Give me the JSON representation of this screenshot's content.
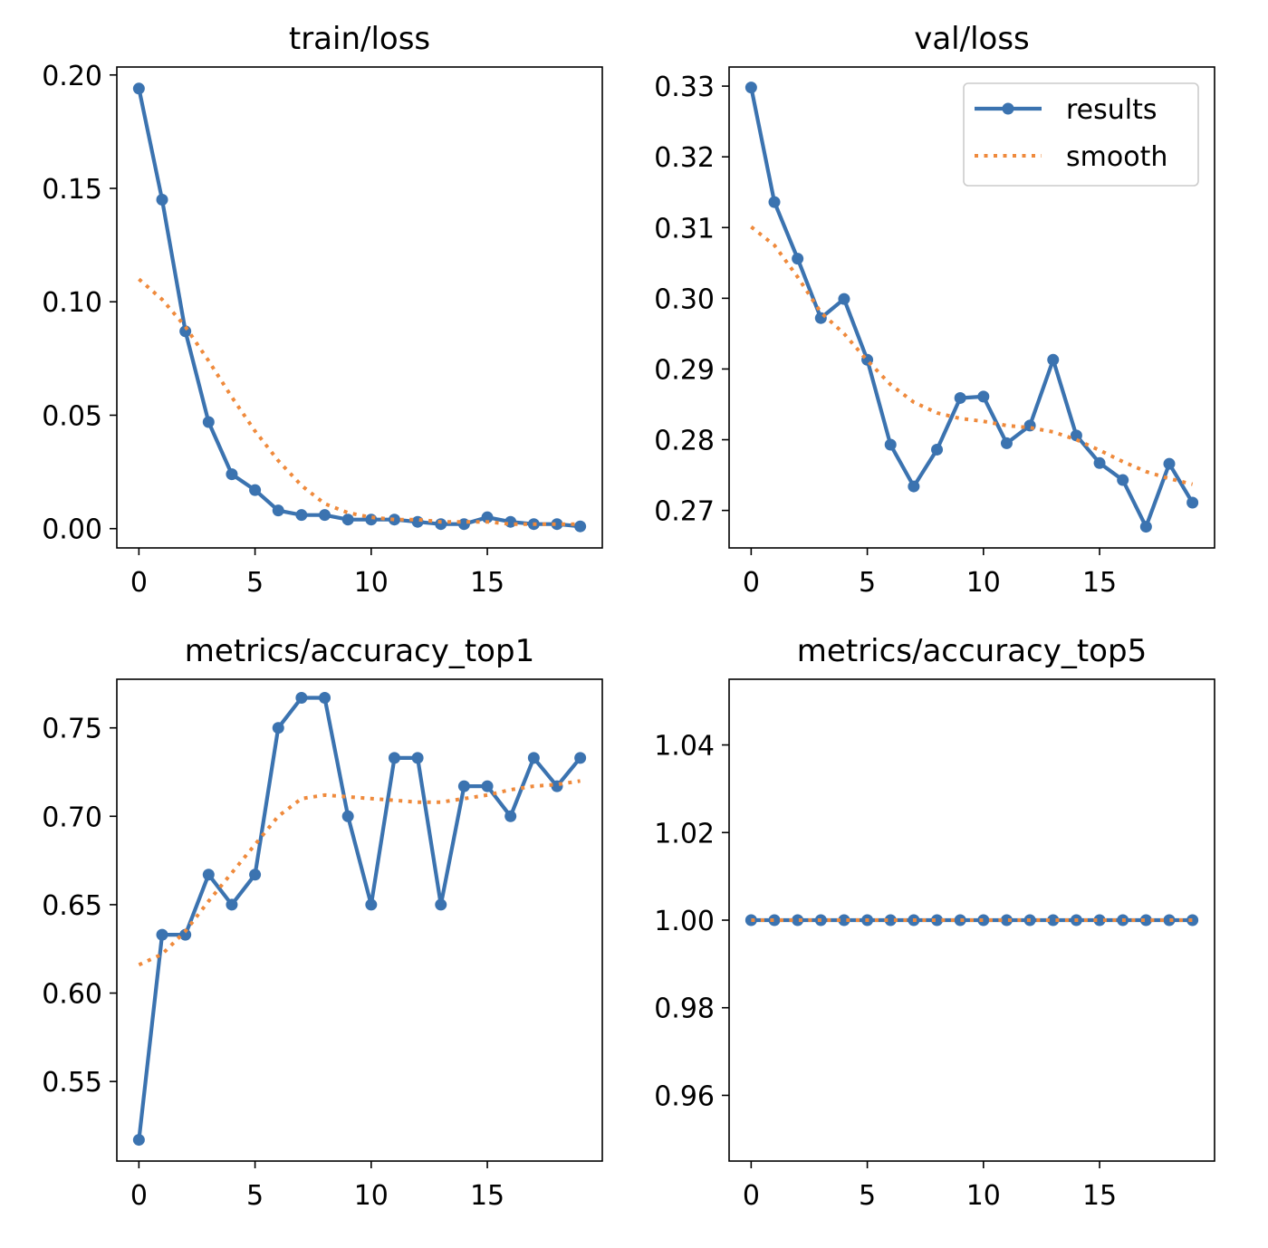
{
  "colors": {
    "results": "#3b73b0",
    "smooth": "#ef8a3c",
    "frame": "#000000",
    "background": "#ffffff"
  },
  "legend": {
    "placement": "upper-right",
    "panel": 1,
    "results_label": "results",
    "smooth_label": "smooth"
  },
  "chart_data": [
    {
      "type": "line",
      "title": "train/loss",
      "xlabel": "",
      "ylabel": "",
      "xlim": [
        -0.95,
        19.95
      ],
      "ylim": [
        -0.0085,
        0.2035
      ],
      "xticks": [
        0,
        5,
        10,
        15
      ],
      "xtick_labels": [
        "0",
        "5",
        "10",
        "15"
      ],
      "yticks": [
        0.0,
        0.05,
        0.1,
        0.15,
        0.2
      ],
      "ytick_labels": [
        "0.00",
        "0.05",
        "0.10",
        "0.15",
        "0.20"
      ],
      "grid": false,
      "x": [
        0,
        1,
        2,
        3,
        4,
        5,
        6,
        7,
        8,
        9,
        10,
        11,
        12,
        13,
        14,
        15,
        16,
        17,
        18,
        19
      ],
      "series": [
        {
          "name": "results",
          "style": "solid-marker",
          "values": [
            0.194,
            0.145,
            0.087,
            0.047,
            0.024,
            0.017,
            0.008,
            0.006,
            0.006,
            0.004,
            0.004,
            0.004,
            0.003,
            0.002,
            0.002,
            0.005,
            0.003,
            0.002,
            0.002,
            0.001
          ]
        },
        {
          "name": "smooth",
          "style": "dotted",
          "values": [
            0.11,
            0.101,
            0.089,
            0.074,
            0.058,
            0.043,
            0.03,
            0.019,
            0.011,
            0.007,
            0.005,
            0.004,
            0.004,
            0.003,
            0.003,
            0.003,
            0.002,
            0.002,
            0.002,
            0.002
          ]
        }
      ]
    },
    {
      "type": "line",
      "title": "val/loss",
      "xlabel": "",
      "ylabel": "",
      "xlim": [
        -0.95,
        19.95
      ],
      "ylim": [
        0.2647,
        0.3327
      ],
      "xticks": [
        0,
        5,
        10,
        15
      ],
      "xtick_labels": [
        "0",
        "5",
        "10",
        "15"
      ],
      "yticks": [
        0.27,
        0.28,
        0.29,
        0.3,
        0.31,
        0.32,
        0.33
      ],
      "ytick_labels": [
        "0.27",
        "0.28",
        "0.29",
        "0.30",
        "0.31",
        "0.32",
        "0.33"
      ],
      "grid": false,
      "x": [
        0,
        1,
        2,
        3,
        4,
        5,
        6,
        7,
        8,
        9,
        10,
        11,
        12,
        13,
        14,
        15,
        16,
        17,
        18,
        19
      ],
      "series": [
        {
          "name": "results",
          "style": "solid-marker",
          "values": [
            0.3298,
            0.3136,
            0.3056,
            0.2972,
            0.2999,
            0.2913,
            0.2793,
            0.2734,
            0.2786,
            0.2859,
            0.2861,
            0.2795,
            0.282,
            0.2913,
            0.2806,
            0.2767,
            0.2743,
            0.2677,
            0.2766,
            0.2711
          ]
        },
        {
          "name": "smooth",
          "style": "dotted",
          "values": [
            0.3101,
            0.3075,
            0.303,
            0.298,
            0.295,
            0.2912,
            0.2878,
            0.2853,
            0.2838,
            0.283,
            0.2826,
            0.282,
            0.2817,
            0.2811,
            0.28,
            0.2785,
            0.2769,
            0.2755,
            0.2745,
            0.2737
          ]
        }
      ]
    },
    {
      "type": "line",
      "title": "metrics/accuracy_top1",
      "xlabel": "",
      "ylabel": "",
      "xlim": [
        -0.95,
        19.95
      ],
      "ylim": [
        0.505,
        0.7775
      ],
      "xticks": [
        0,
        5,
        10,
        15
      ],
      "xtick_labels": [
        "0",
        "5",
        "10",
        "15"
      ],
      "yticks": [
        0.55,
        0.6,
        0.65,
        0.7,
        0.75
      ],
      "ytick_labels": [
        "0.55",
        "0.60",
        "0.65",
        "0.70",
        "0.75"
      ],
      "grid": false,
      "x": [
        0,
        1,
        2,
        3,
        4,
        5,
        6,
        7,
        8,
        9,
        10,
        11,
        12,
        13,
        14,
        15,
        16,
        17,
        18,
        19
      ],
      "series": [
        {
          "name": "results",
          "style": "solid-marker",
          "values": [
            0.517,
            0.633,
            0.633,
            0.667,
            0.65,
            0.667,
            0.75,
            0.767,
            0.767,
            0.7,
            0.65,
            0.733,
            0.733,
            0.65,
            0.717,
            0.717,
            0.7,
            0.733,
            0.717,
            0.733
          ]
        },
        {
          "name": "smooth",
          "style": "dotted",
          "values": [
            0.616,
            0.622,
            0.635,
            0.652,
            0.668,
            0.684,
            0.7,
            0.71,
            0.712,
            0.711,
            0.71,
            0.709,
            0.708,
            0.708,
            0.71,
            0.712,
            0.715,
            0.717,
            0.718,
            0.72
          ]
        }
      ]
    },
    {
      "type": "line",
      "title": "metrics/accuracy_top5",
      "xlabel": "",
      "ylabel": "",
      "xlim": [
        -0.95,
        19.95
      ],
      "ylim": [
        0.945,
        1.055
      ],
      "xticks": [
        0,
        5,
        10,
        15
      ],
      "xtick_labels": [
        "0",
        "5",
        "10",
        "15"
      ],
      "yticks": [
        0.96,
        0.98,
        1.0,
        1.02,
        1.04
      ],
      "ytick_labels": [
        "0.96",
        "0.98",
        "1.00",
        "1.02",
        "1.04"
      ],
      "grid": false,
      "x": [
        0,
        1,
        2,
        3,
        4,
        5,
        6,
        7,
        8,
        9,
        10,
        11,
        12,
        13,
        14,
        15,
        16,
        17,
        18,
        19
      ],
      "series": [
        {
          "name": "results",
          "style": "solid-marker",
          "values": [
            1.0,
            1.0,
            1.0,
            1.0,
            1.0,
            1.0,
            1.0,
            1.0,
            1.0,
            1.0,
            1.0,
            1.0,
            1.0,
            1.0,
            1.0,
            1.0,
            1.0,
            1.0,
            1.0,
            1.0
          ]
        },
        {
          "name": "smooth",
          "style": "dotted",
          "values": [
            1.0,
            1.0,
            1.0,
            1.0,
            1.0,
            1.0,
            1.0,
            1.0,
            1.0,
            1.0,
            1.0,
            1.0,
            1.0,
            1.0,
            1.0,
            1.0,
            1.0,
            1.0,
            1.0,
            1.0
          ]
        }
      ]
    }
  ]
}
